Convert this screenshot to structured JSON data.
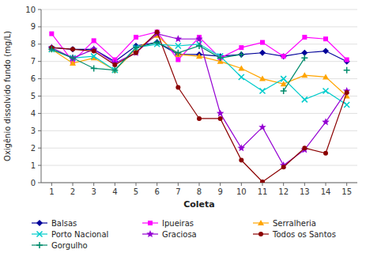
{
  "chart_data": {
    "type": "line",
    "x": [
      1,
      2,
      3,
      4,
      5,
      6,
      7,
      8,
      9,
      10,
      11,
      12,
      13,
      14,
      15
    ],
    "series": [
      {
        "name": "Balsas",
        "color": "#000099",
        "marker": "diamond",
        "values": [
          7.8,
          7.7,
          7.7,
          7.0,
          7.9,
          8.1,
          7.4,
          7.4,
          7.3,
          7.4,
          7.5,
          7.3,
          7.5,
          7.6,
          7.0
        ]
      },
      {
        "name": "Ipueiras",
        "color": "#FF00FF",
        "marker": "square",
        "values": [
          8.6,
          7.0,
          8.2,
          7.1,
          8.4,
          8.7,
          7.1,
          8.4,
          7.2,
          7.8,
          8.1,
          7.3,
          8.4,
          8.3,
          7.1
        ]
      },
      {
        "name": "Serralheria",
        "color": "#FFA500",
        "marker": "triangle",
        "values": [
          7.7,
          6.9,
          7.2,
          6.5,
          7.7,
          8.5,
          7.4,
          7.3,
          7.0,
          6.6,
          6.0,
          5.7,
          6.2,
          6.1,
          5.0
        ]
      },
      {
        "name": "Porto Nacional",
        "color": "#00CCCC",
        "marker": "x",
        "values": [
          7.7,
          7.2,
          7.3,
          6.5,
          7.8,
          8.0,
          7.9,
          8.0,
          7.3,
          6.1,
          5.3,
          6.0,
          4.8,
          5.3,
          4.5
        ]
      },
      {
        "name": "Graciosa",
        "color": "#9400D3",
        "marker": "star",
        "values": [
          7.8,
          7.2,
          7.7,
          6.9,
          7.5,
          8.6,
          8.3,
          8.3,
          4.0,
          2.0,
          3.2,
          1.0,
          1.9,
          3.5,
          5.3
        ]
      },
      {
        "name": "Todos os Santos",
        "color": "#8B0000",
        "marker": "circle",
        "values": [
          7.8,
          7.7,
          7.6,
          6.8,
          7.5,
          8.7,
          5.5,
          3.7,
          3.7,
          1.3,
          0.05,
          0.9,
          2.0,
          1.7,
          5.2
        ]
      },
      {
        "name": "Gorgulho",
        "color": "#008B6B",
        "marker": "plus",
        "values": [
          7.7,
          7.2,
          6.6,
          6.5,
          7.8,
          8.1,
          7.5,
          7.9,
          7.2,
          7.4,
          null,
          5.3,
          7.2,
          null,
          6.5
        ]
      }
    ],
    "xlabel": "Coleta",
    "ylabel": "Oxigênio dissolvido fundo (mg/L)",
    "xlim": [
      0.5,
      15.5
    ],
    "ylim": [
      0,
      10
    ],
    "xticks": [
      1,
      2,
      3,
      4,
      5,
      6,
      7,
      8,
      9,
      10,
      11,
      12,
      13,
      14,
      15
    ],
    "yticks": [
      0,
      1,
      2,
      3,
      4,
      5,
      6,
      7,
      8,
      9,
      10
    ],
    "grid": true,
    "legend": "bottom"
  }
}
